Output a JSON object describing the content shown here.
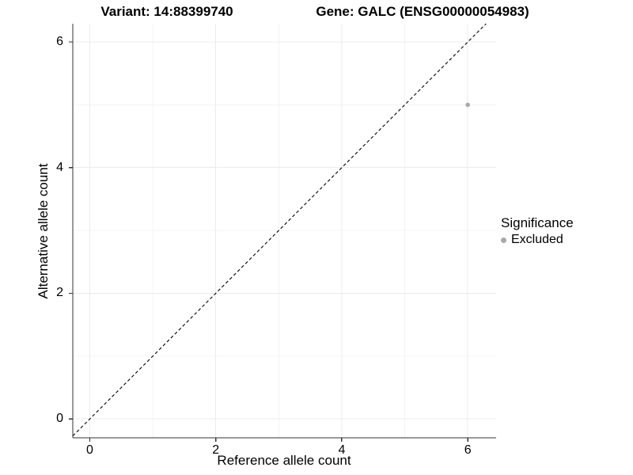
{
  "chart_data": {
    "type": "scatter",
    "titles": {
      "left": "Variant: 14:88399740",
      "right": "Gene: GALC (ENSG00000054983)"
    },
    "xlabel": "Reference allele count",
    "ylabel": "Alternative allele count",
    "x_ticks": [
      0,
      2,
      4,
      6
    ],
    "y_ticks": [
      0,
      2,
      4,
      6
    ],
    "x_minor_ticks": [
      1,
      3,
      5
    ],
    "y_minor_ticks": [
      1,
      3,
      5
    ],
    "xlim": [
      -0.27,
      6.45
    ],
    "ylim": [
      -0.3,
      6.29
    ],
    "grid": "major+minor",
    "reference_line": {
      "type": "identity",
      "style": "dashed",
      "color": "#000000"
    },
    "series": [
      {
        "name": "Excluded",
        "color": "#a9a9a9",
        "points": [
          {
            "x": 6,
            "y": 5
          }
        ]
      }
    ],
    "legend": {
      "title": "Significance",
      "position": "right",
      "items": [
        {
          "label": "Excluded",
          "color": "#a9a9a9"
        }
      ]
    },
    "colors": {
      "grid_major": "#ececec",
      "grid_minor": "#f4f4f4",
      "axis": "#333333",
      "text": "#000000"
    }
  }
}
